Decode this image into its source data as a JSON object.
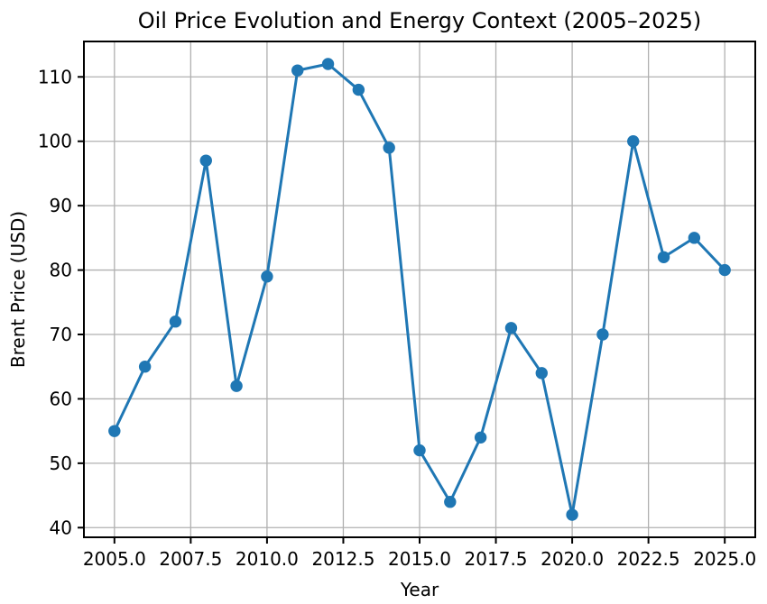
{
  "chart_data": {
    "type": "line",
    "title": "Oil Price Evolution and Energy Context (2005–2025)",
    "xlabel": "Year",
    "ylabel": "Brent Price (USD)",
    "x": [
      2005,
      2006,
      2007,
      2008,
      2009,
      2010,
      2011,
      2012,
      2013,
      2014,
      2015,
      2016,
      2017,
      2018,
      2019,
      2020,
      2021,
      2022,
      2023,
      2024,
      2025
    ],
    "series": [
      {
        "name": "Brent Price",
        "values": [
          55,
          65,
          72,
          97,
          62,
          79,
          111,
          112,
          108,
          99,
          52,
          44,
          54,
          71,
          64,
          42,
          70,
          100,
          82,
          85,
          80
        ]
      }
    ],
    "xlim": [
      2004,
      2026
    ],
    "ylim": [
      38.5,
      115.5
    ],
    "x_ticks": [
      2005,
      2007.5,
      2010,
      2012.5,
      2015,
      2017.5,
      2020,
      2022.5,
      2025
    ],
    "x_tick_labels": [
      "2005.0",
      "2007.5",
      "2010.0",
      "2012.5",
      "2015.0",
      "2017.5",
      "2020.0",
      "2022.5",
      "2025.0"
    ],
    "y_ticks": [
      40,
      50,
      60,
      70,
      80,
      90,
      100,
      110
    ],
    "y_tick_labels": [
      "40",
      "50",
      "60",
      "70",
      "80",
      "90",
      "100",
      "110"
    ],
    "grid": true,
    "legend": "none",
    "line_color": "#1f77b4",
    "grid_color": "#b0b0b0",
    "marker": "o"
  }
}
